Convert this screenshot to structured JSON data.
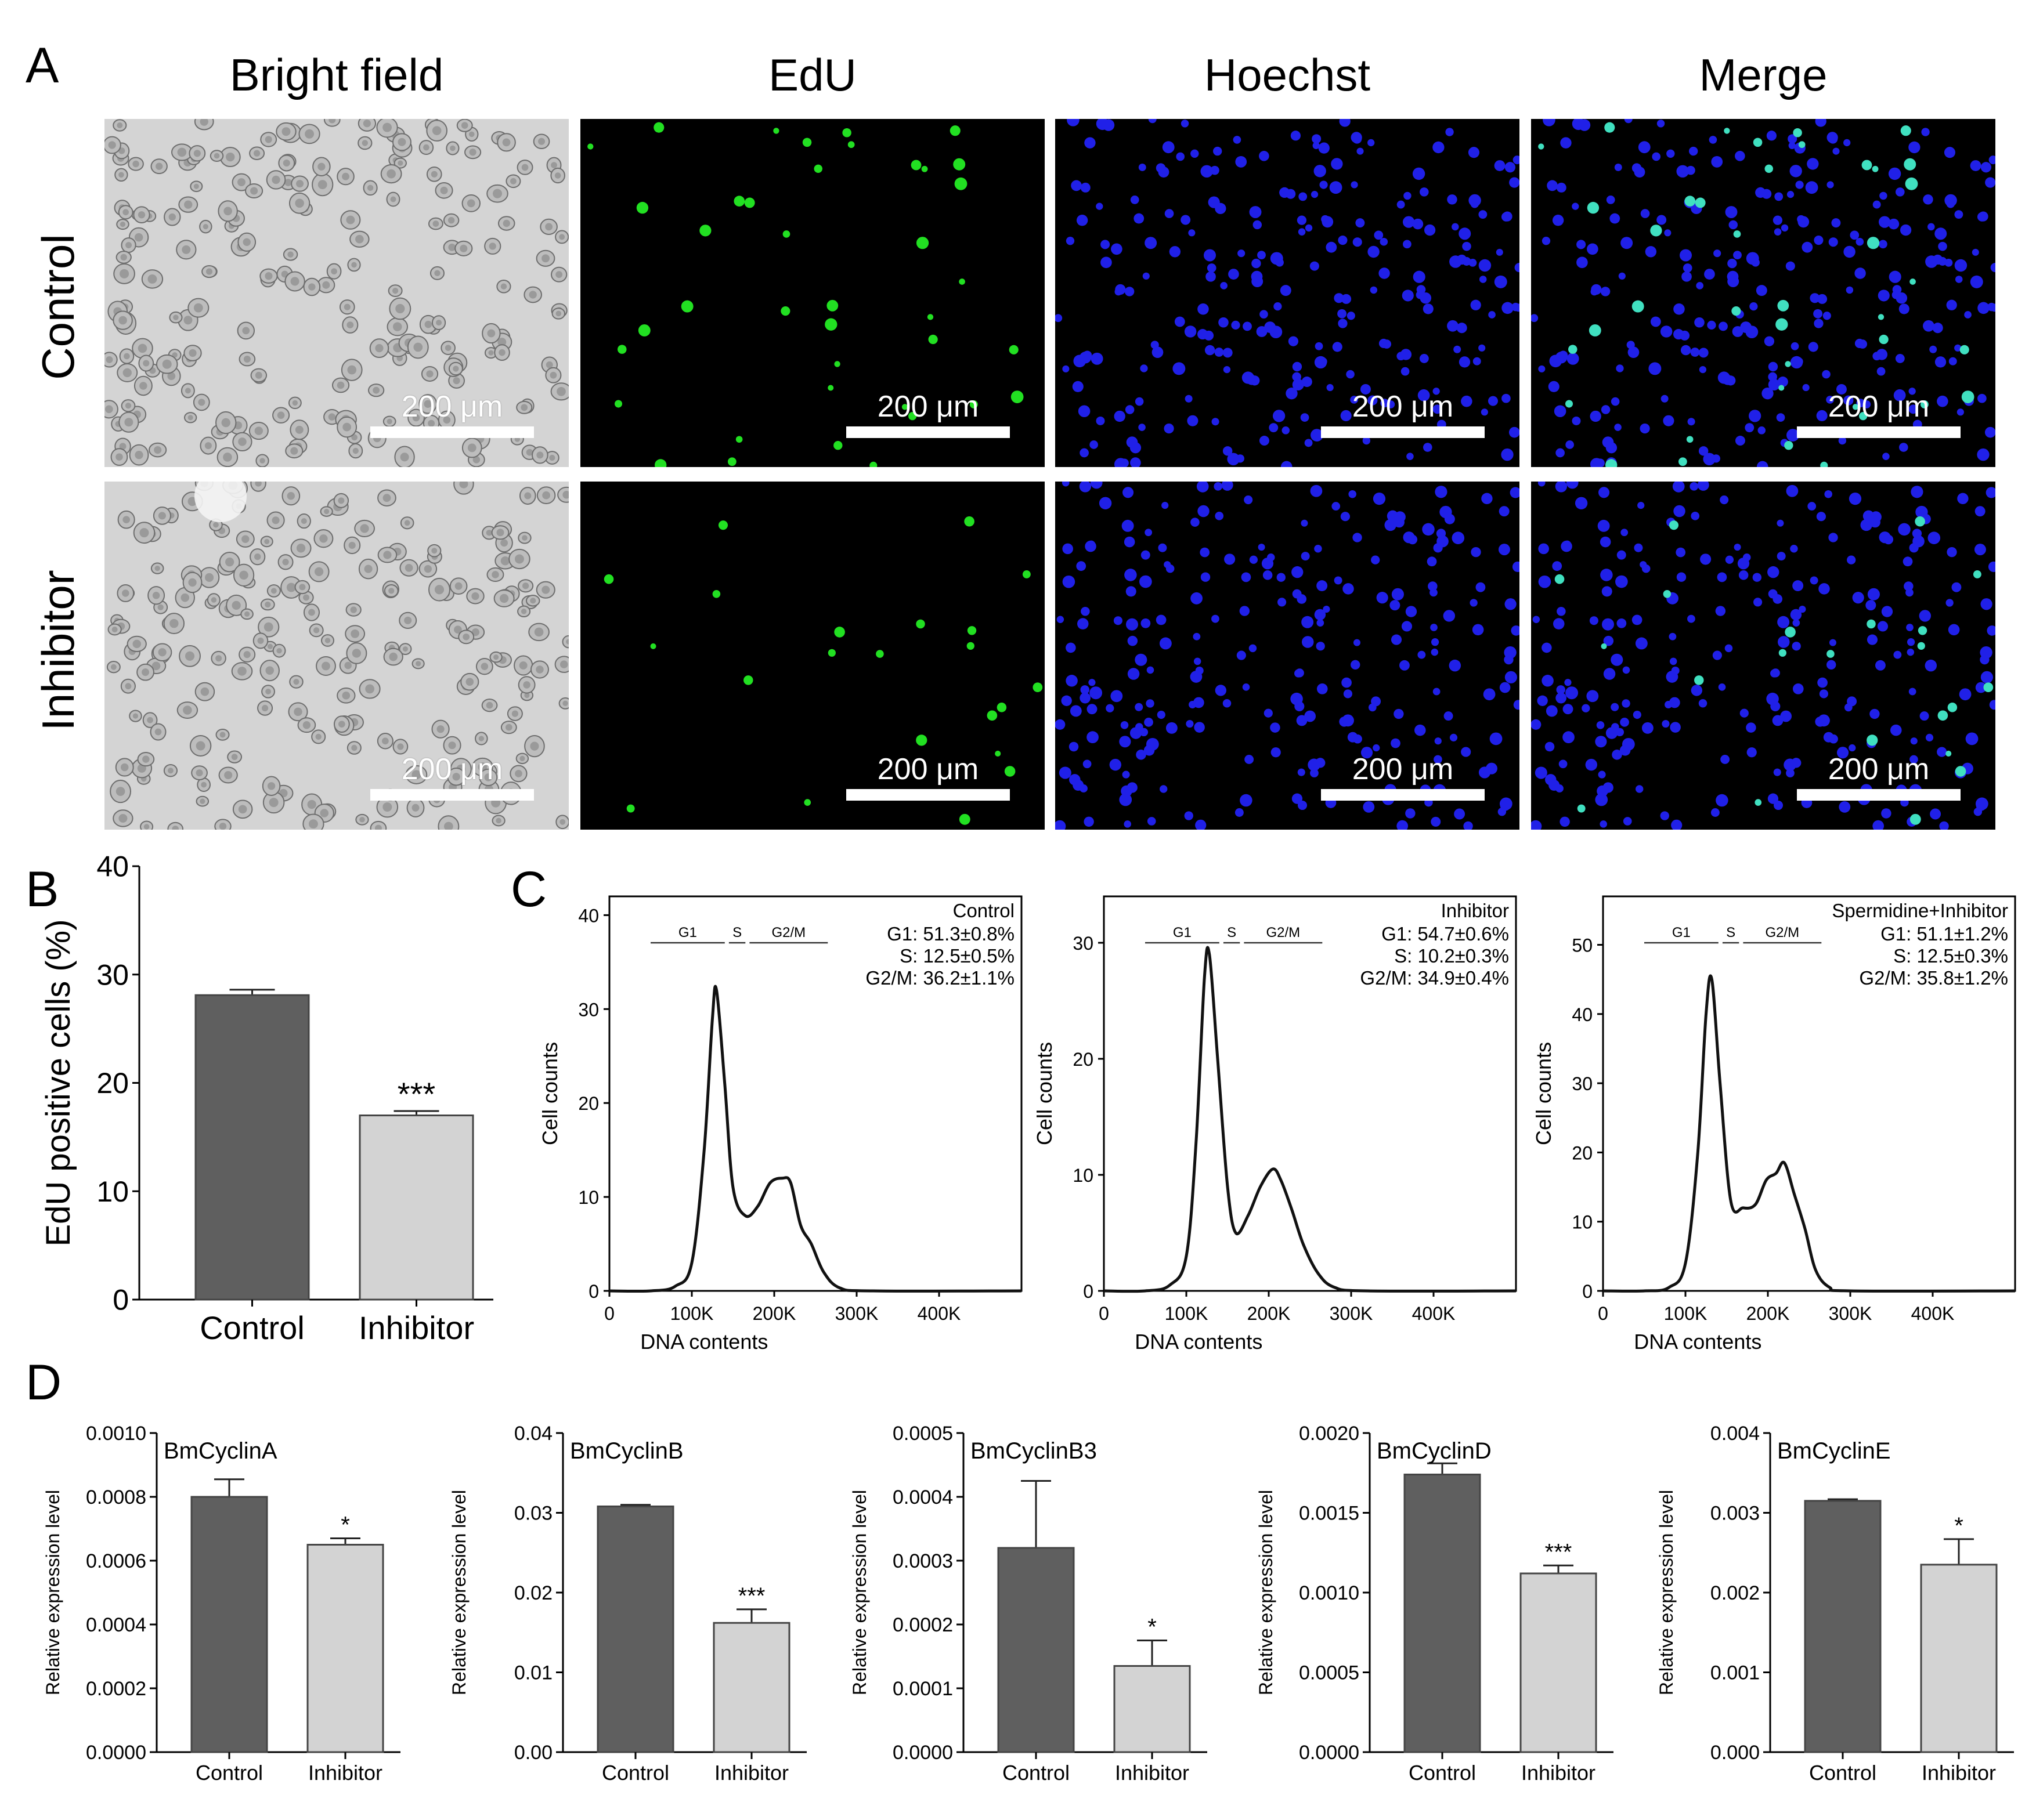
{
  "panel_letters": {
    "a": "A",
    "b": "B",
    "c": "C",
    "d": "D"
  },
  "micrographs": {
    "columns": [
      "Bright field",
      "EdU",
      "Hoechst",
      "Merge"
    ],
    "rows": [
      "Control",
      "Inhibitor"
    ],
    "scale_bar_label": "200 μm"
  },
  "colors": {
    "control_bar": "#5f5f5f",
    "inhibitor_bar": "#d3d3d3",
    "edu_green": "#22e022",
    "hoechst_blue": "#2020e8",
    "merge_cyan": "#40e0c0"
  },
  "chart_data": [
    {
      "id": "B",
      "type": "bar",
      "categories": [
        "Control",
        "Inhibitor"
      ],
      "values": [
        28.1,
        17.0
      ],
      "errors": [
        0.5,
        0.4
      ],
      "significance": [
        "",
        "***"
      ],
      "ylabel": "EdU positive cells (%)",
      "ylim": [
        0,
        40
      ],
      "yticks": [
        "0",
        "10",
        "20",
        "30",
        "40"
      ]
    },
    {
      "id": "C1",
      "type": "line",
      "legend": "Control",
      "xlabel": "DNA contents",
      "ylabel": "Cell counts",
      "xticks": [
        "0",
        "100K",
        "200K",
        "300K",
        "400K"
      ],
      "yticks": [
        "0",
        "10",
        "20",
        "30",
        "40"
      ],
      "xlim": [
        0,
        500000
      ],
      "ylim": [
        0,
        42
      ],
      "gates": [
        "G1",
        "S",
        "G2/M"
      ],
      "stats": [
        "G1: 51.3±0.8%",
        "S: 12.5±0.5%",
        "G2/M: 36.2±1.1%"
      ],
      "x": [
        0,
        50000,
        80000,
        100000,
        115000,
        125000,
        130000,
        140000,
        150000,
        165000,
        180000,
        195000,
        210000,
        220000,
        232000,
        245000,
        260000,
        280000,
        320000,
        500000
      ],
      "y": [
        0,
        0,
        0.5,
        3,
        15,
        29,
        32,
        22,
        11,
        8,
        9,
        11.5,
        12,
        11.5,
        7,
        5,
        2,
        0.3,
        0,
        0
      ]
    },
    {
      "id": "C2",
      "type": "line",
      "legend": "Inhibitor",
      "xlabel": "DNA contents",
      "ylabel": "Cell counts",
      "xticks": [
        "0",
        "100K",
        "200K",
        "300K",
        "400K"
      ],
      "yticks": [
        "0",
        "10",
        "20",
        "30"
      ],
      "xlim": [
        0,
        500000
      ],
      "ylim": [
        0,
        34
      ],
      "gates": [
        "G1",
        "S",
        "G2/M"
      ],
      "stats": [
        "G1: 54.7±0.6%",
        "S: 10.2±0.3%",
        "G2/M: 34.9±0.4%"
      ],
      "x": [
        0,
        50000,
        80000,
        100000,
        112000,
        122000,
        128000,
        138000,
        150000,
        160000,
        175000,
        190000,
        205000,
        215000,
        228000,
        242000,
        260000,
        280000,
        320000,
        500000
      ],
      "y": [
        0,
        0,
        0.5,
        3,
        13,
        27,
        29,
        20,
        9,
        5,
        6.5,
        9,
        10.5,
        9.5,
        7,
        4,
        1.5,
        0.3,
        0,
        0
      ]
    },
    {
      "id": "C3",
      "type": "line",
      "legend": "Spermidine+Inhibitor",
      "xlabel": "DNA contents",
      "ylabel": "Cell counts",
      "xticks": [
        "0",
        "100K",
        "200K",
        "300K",
        "400K"
      ],
      "yticks": [
        "0",
        "10",
        "20",
        "30",
        "40",
        "50"
      ],
      "xlim": [
        0,
        500000
      ],
      "ylim": [
        0,
        57
      ],
      "gates": [
        "G1",
        "S",
        "G2/M"
      ],
      "stats": [
        "G1: 51.1±1.2%",
        "S: 12.5±0.3%",
        "G2/M: 35.8±1.2%"
      ],
      "x": [
        0,
        50000,
        80000,
        100000,
        115000,
        125000,
        132000,
        142000,
        155000,
        170000,
        185000,
        198000,
        210000,
        220000,
        232000,
        245000,
        258000,
        275000,
        300000,
        500000
      ],
      "y": [
        0,
        0,
        0.5,
        4,
        20,
        40,
        45,
        30,
        13,
        12,
        12.5,
        16,
        17,
        18.5,
        14,
        9,
        3,
        0.5,
        0,
        0
      ]
    },
    {
      "id": "D1",
      "type": "bar",
      "title": "BmCyclinA",
      "categories": [
        "Control",
        "Inhibitor"
      ],
      "values": [
        0.0008,
        0.00065
      ],
      "errors": [
        5.5e-05,
        2e-05
      ],
      "significance": [
        "",
        "*"
      ],
      "ylabel": "Relative expression level",
      "ylim": [
        0,
        0.001
      ],
      "yticks": [
        "0.0000",
        "0.0002",
        "0.0004",
        "0.0006",
        "0.0008",
        "0.0010"
      ]
    },
    {
      "id": "D2",
      "type": "bar",
      "title": "BmCyclinB",
      "categories": [
        "Control",
        "Inhibitor"
      ],
      "values": [
        0.0308,
        0.0162
      ],
      "errors": [
        0.0002,
        0.0017
      ],
      "significance": [
        "",
        "***"
      ],
      "ylabel": "Relative expression level",
      "ylim": [
        0,
        0.04
      ],
      "yticks": [
        "0.00",
        "0.01",
        "0.02",
        "0.03",
        "0.04"
      ]
    },
    {
      "id": "D3",
      "type": "bar",
      "title": "BmCyclinB3",
      "categories": [
        "Control",
        "Inhibitor"
      ],
      "values": [
        0.00032,
        0.000135
      ],
      "errors": [
        0.000105,
        4e-05
      ],
      "significance": [
        "",
        "*"
      ],
      "ylabel": "Relative expression level",
      "ylim": [
        0,
        0.0005
      ],
      "yticks": [
        "0.0000",
        "0.0001",
        "0.0002",
        "0.0003",
        "0.0004",
        "0.0005"
      ]
    },
    {
      "id": "D4",
      "type": "bar",
      "title": "BmCyclinD",
      "categories": [
        "Control",
        "Inhibitor"
      ],
      "values": [
        0.00174,
        0.00112
      ],
      "errors": [
        7e-05,
        5e-05
      ],
      "significance": [
        "",
        "***"
      ],
      "ylabel": "Relative expression level",
      "ylim": [
        0,
        0.002
      ],
      "yticks": [
        "0.0000",
        "0.0005",
        "0.0010",
        "0.0015",
        "0.0020"
      ]
    },
    {
      "id": "D5",
      "type": "bar",
      "title": "BmCyclinE",
      "categories": [
        "Control",
        "Inhibitor"
      ],
      "values": [
        0.00315,
        0.00235
      ],
      "errors": [
        2e-05,
        0.00032
      ],
      "significance": [
        "",
        "*"
      ],
      "ylabel": "Relative expression level",
      "ylim": [
        0,
        0.004
      ],
      "yticks": [
        "0.000",
        "0.001",
        "0.002",
        "0.003",
        "0.004"
      ]
    }
  ]
}
